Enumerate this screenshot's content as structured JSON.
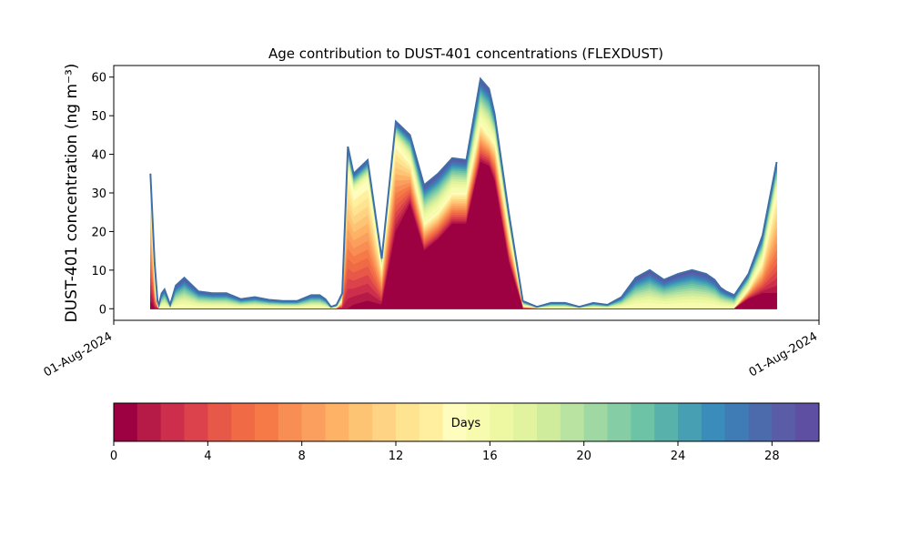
{
  "chart_data": {
    "type": "area",
    "title": "Age contribution to DUST-401 concentrations (FLEXDUST)",
    "ylabel": "DUST-401 concentration (ng m⁻³)",
    "xlabel": "",
    "x_ticks": [
      "01-Aug-2024",
      "01-Aug-2024"
    ],
    "ylim": [
      -3,
      63
    ],
    "yticks": [
      0,
      10,
      20,
      30,
      40,
      50,
      60
    ],
    "grid": false,
    "stacked": true,
    "x_index": [
      1.3,
      1.45,
      1.55,
      1.6,
      1.7,
      1.8,
      2.0,
      2.2,
      2.5,
      3.0,
      3.5,
      4.0,
      4.5,
      5.0,
      5.5,
      6.0,
      6.5,
      7.0,
      7.3,
      7.5,
      7.7,
      7.9,
      8.1,
      8.3,
      8.5,
      9.0,
      9.5,
      10.0,
      10.5,
      11.0,
      11.5,
      12.0,
      12.5,
      13.0,
      13.3,
      13.5,
      14.0,
      14.5,
      15.0,
      15.5,
      16.0,
      16.5,
      17.0,
      17.5,
      18.0,
      18.5,
      19.0,
      19.5,
      20.0,
      20.5,
      21.0,
      21.3,
      21.5,
      21.7,
      22.0,
      22.5,
      23.0,
      23.5
    ],
    "total_values": [
      35,
      12,
      2,
      1,
      4,
      5,
      1,
      6,
      8,
      4.5,
      4,
      4,
      2.5,
      3,
      2.3,
      2,
      2,
      3.5,
      3.5,
      2.5,
      0.5,
      1,
      4,
      42,
      35,
      38.5,
      13,
      48.5,
      45,
      32,
      35,
      39,
      38.5,
      59.5,
      57,
      50.5,
      25,
      2,
      0.5,
      1.5,
      1.5,
      0.5,
      1.5,
      1,
      3,
      8,
      10,
      7.5,
      9,
      10,
      9,
      7.5,
      5.5,
      4.5,
      3.5,
      9,
      19,
      38
    ],
    "young_values": [
      2,
      0,
      0,
      0,
      0,
      0,
      0,
      0,
      0,
      0,
      0,
      0,
      0,
      0,
      0,
      0,
      0,
      0,
      0,
      0,
      0,
      0,
      0,
      0,
      1,
      2,
      1,
      20,
      27,
      15,
      18,
      22,
      22,
      38,
      37,
      33,
      12,
      0,
      0,
      0,
      0,
      0,
      0,
      0,
      0,
      0,
      0,
      0,
      0,
      0,
      0,
      0,
      0,
      0,
      0,
      2.5,
      4,
      4
    ],
    "mid_values": [
      30,
      5,
      0.5,
      0,
      0,
      0,
      0,
      0,
      0,
      0,
      0,
      0,
      0,
      0,
      0,
      0,
      0,
      0,
      0,
      0,
      0,
      0,
      2,
      36,
      30,
      33,
      10,
      43,
      38,
      22,
      25,
      30,
      30,
      48,
      45,
      43,
      20,
      0.5,
      0,
      0,
      0,
      0,
      0,
      0,
      0,
      0,
      0,
      0,
      0,
      0,
      0,
      0,
      0,
      0,
      0,
      5,
      12,
      30
    ],
    "old_share": 0.35,
    "colorbar": {
      "label": "Days",
      "min": 0,
      "max": 30,
      "ticks": [
        0,
        4,
        8,
        12,
        16,
        20,
        24,
        28
      ],
      "bins": 30,
      "colors": [
        "#9e0142",
        "#b61b48",
        "#cd2e4b",
        "#db424b",
        "#e75848",
        "#ef6a45",
        "#f57a48",
        "#f88e53",
        "#fb9f5e",
        "#fdb266",
        "#fdc474",
        "#fed383",
        "#fee391",
        "#ffef9f",
        "#fffdbd",
        "#f7fbae",
        "#eef8a3",
        "#e1f39e",
        "#cfeb9c",
        "#b9e3a0",
        "#a0d8a3",
        "#85cda5",
        "#6dc3a5",
        "#58b2ab",
        "#479fb3",
        "#3a8cbb",
        "#3f7bb5",
        "#4c6bad",
        "#5a5ca7",
        "#5e4fa2"
      ]
    }
  }
}
